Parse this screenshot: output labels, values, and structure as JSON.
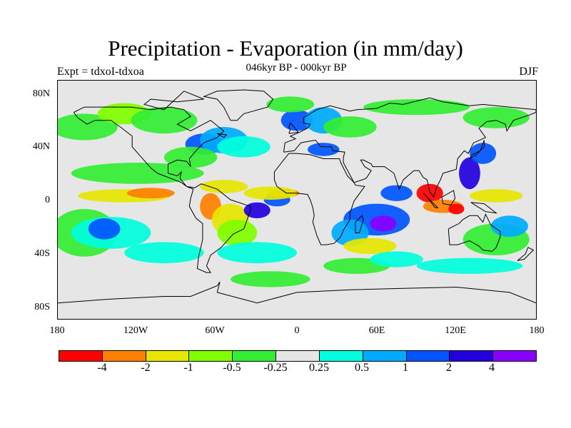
{
  "title": "Precipitation - Evaporation (in mm/day)",
  "subtitle": "046kyr BP - 000kyr BP",
  "left_label": "Expt = tdxoI-tdxoa",
  "right_label": "DJF",
  "lat_labels": [
    "80N",
    "40N",
    "0",
    "40S",
    "80S"
  ],
  "lon_labels": [
    "180",
    "120W",
    "60W",
    "0",
    "60E",
    "120E",
    "180"
  ],
  "colorbar": {
    "colors": [
      "#ff0000",
      "#ff8000",
      "#e6e600",
      "#80ff00",
      "#33ee33",
      "#e6e6e6",
      "#00ffdd",
      "#00aaff",
      "#0055ff",
      "#2200dd",
      "#8800ff"
    ],
    "labels": [
      "-4",
      "-2",
      "-1",
      "-0.5",
      "-0.25",
      "0.25",
      "0.5",
      "1",
      "2",
      "4"
    ]
  },
  "map": {
    "background": "#e6e6e6",
    "blobs": [
      {
        "c": "#33ee33",
        "lon": -120,
        "lat": 20,
        "rx": 50,
        "ry": 8
      },
      {
        "c": "#33ee33",
        "lon": -160,
        "lat": -25,
        "rx": 25,
        "ry": 18
      },
      {
        "c": "#00ffdd",
        "lon": -140,
        "lat": -25,
        "rx": 30,
        "ry": 12
      },
      {
        "c": "#0055ff",
        "lon": -145,
        "lat": -22,
        "rx": 12,
        "ry": 8
      },
      {
        "c": "#00ffdd",
        "lon": -100,
        "lat": -40,
        "rx": 30,
        "ry": 8
      },
      {
        "c": "#e6e600",
        "lon": -130,
        "lat": 3,
        "rx": 35,
        "ry": 5
      },
      {
        "c": "#ff8000",
        "lon": -110,
        "lat": 5,
        "rx": 18,
        "ry": 4
      },
      {
        "c": "#33ee33",
        "lon": -160,
        "lat": 55,
        "rx": 25,
        "ry": 10
      },
      {
        "c": "#80ff00",
        "lon": -130,
        "lat": 65,
        "rx": 20,
        "ry": 8
      },
      {
        "c": "#33ee33",
        "lon": -100,
        "lat": 60,
        "rx": 25,
        "ry": 10
      },
      {
        "c": "#0055ff",
        "lon": -70,
        "lat": 42,
        "rx": 14,
        "ry": 8
      },
      {
        "c": "#00aaff",
        "lon": -55,
        "lat": 45,
        "rx": 18,
        "ry": 10
      },
      {
        "c": "#00ffdd",
        "lon": -40,
        "lat": 40,
        "rx": 20,
        "ry": 8
      },
      {
        "c": "#33ee33",
        "lon": -80,
        "lat": 32,
        "rx": 20,
        "ry": 8
      },
      {
        "c": "#e6e600",
        "lon": -55,
        "lat": 10,
        "rx": 18,
        "ry": 5
      },
      {
        "c": "#ff8000",
        "lon": -65,
        "lat": -5,
        "rx": 8,
        "ry": 10
      },
      {
        "c": "#e6e600",
        "lon": -50,
        "lat": -15,
        "rx": 14,
        "ry": 12
      },
      {
        "c": "#80ff00",
        "lon": -45,
        "lat": -25,
        "rx": 15,
        "ry": 10
      },
      {
        "c": "#2200dd",
        "lon": -30,
        "lat": -8,
        "rx": 10,
        "ry": 6
      },
      {
        "c": "#0055ff",
        "lon": -15,
        "lat": 0,
        "rx": 10,
        "ry": 5
      },
      {
        "c": "#ff8000",
        "lon": -10,
        "lat": 5,
        "rx": 12,
        "ry": 3
      },
      {
        "c": "#e6e600",
        "lon": -20,
        "lat": 5,
        "rx": 20,
        "ry": 5
      },
      {
        "c": "#00ffdd",
        "lon": -30,
        "lat": -40,
        "rx": 30,
        "ry": 8
      },
      {
        "c": "#33ee33",
        "lon": -20,
        "lat": -60,
        "rx": 30,
        "ry": 6
      },
      {
        "c": "#0055ff",
        "lon": 0,
        "lat": 60,
        "rx": 12,
        "ry": 8
      },
      {
        "c": "#00aaff",
        "lon": 20,
        "lat": 60,
        "rx": 14,
        "ry": 10
      },
      {
        "c": "#33ee33",
        "lon": -5,
        "lat": 72,
        "rx": 18,
        "ry": 6
      },
      {
        "c": "#0055ff",
        "lon": 20,
        "lat": 38,
        "rx": 12,
        "ry": 5
      },
      {
        "c": "#33ee33",
        "lon": 40,
        "lat": 55,
        "rx": 20,
        "ry": 8
      },
      {
        "c": "#0055ff",
        "lon": 60,
        "lat": -15,
        "rx": 25,
        "ry": 12
      },
      {
        "c": "#8800ff",
        "lon": 65,
        "lat": -18,
        "rx": 10,
        "ry": 6
      },
      {
        "c": "#00aaff",
        "lon": 40,
        "lat": -25,
        "rx": 14,
        "ry": 10
      },
      {
        "c": "#e6e600",
        "lon": 55,
        "lat": -35,
        "rx": 20,
        "ry": 6
      },
      {
        "c": "#33ee33",
        "lon": 45,
        "lat": -50,
        "rx": 25,
        "ry": 6
      },
      {
        "c": "#00ffdd",
        "lon": 75,
        "lat": -45,
        "rx": 20,
        "ry": 6
      },
      {
        "c": "#ff0000",
        "lon": 100,
        "lat": 5,
        "rx": 10,
        "ry": 7
      },
      {
        "c": "#ff8000",
        "lon": 110,
        "lat": -5,
        "rx": 15,
        "ry": 5
      },
      {
        "c": "#ff0000",
        "lon": 120,
        "lat": -7,
        "rx": 6,
        "ry": 4
      },
      {
        "c": "#0055ff",
        "lon": 75,
        "lat": 5,
        "rx": 12,
        "ry": 6
      },
      {
        "c": "#e6e600",
        "lon": 150,
        "lat": 3,
        "rx": 20,
        "ry": 5
      },
      {
        "c": "#2200dd",
        "lon": 130,
        "lat": 20,
        "rx": 8,
        "ry": 12
      },
      {
        "c": "#0055ff",
        "lon": 140,
        "lat": 35,
        "rx": 10,
        "ry": 8
      },
      {
        "c": "#33ee33",
        "lon": 150,
        "lat": -30,
        "rx": 25,
        "ry": 12
      },
      {
        "c": "#00aaff",
        "lon": 160,
        "lat": -20,
        "rx": 14,
        "ry": 8
      },
      {
        "c": "#33ee33",
        "lon": 90,
        "lat": 70,
        "rx": 40,
        "ry": 6
      },
      {
        "c": "#33ee33",
        "lon": 150,
        "lat": 62,
        "rx": 25,
        "ry": 8
      },
      {
        "c": "#00ffdd",
        "lon": 130,
        "lat": -50,
        "rx": 40,
        "ry": 6
      }
    ],
    "coastlines": [
      [
        [
          -168,
          66
        ],
        [
          -160,
          70
        ],
        [
          -140,
          70
        ],
        [
          -125,
          70
        ],
        [
          -110,
          68
        ],
        [
          -95,
          70
        ],
        [
          -85,
          68
        ],
        [
          -80,
          63
        ],
        [
          -90,
          57
        ],
        [
          -80,
          52
        ],
        [
          -65,
          60
        ],
        [
          -55,
          52
        ],
        [
          -60,
          47
        ],
        [
          -70,
          43
        ],
        [
          -76,
          37
        ],
        [
          -81,
          31
        ],
        [
          -80,
          25
        ],
        [
          -83,
          29
        ],
        [
          -90,
          30
        ],
        [
          -97,
          27
        ],
        [
          -97,
          20
        ],
        [
          -90,
          18
        ],
        [
          -87,
          21
        ],
        [
          -88,
          16
        ],
        [
          -83,
          10
        ],
        [
          -78,
          8
        ],
        [
          -80,
          1
        ],
        [
          -81,
          -5
        ],
        [
          -76,
          -14
        ],
        [
          -71,
          -18
        ],
        [
          -71,
          -30
        ],
        [
          -74,
          -43
        ],
        [
          -75,
          -52
        ],
        [
          -68,
          -55
        ],
        [
          -65,
          -55
        ],
        [
          -68,
          -50
        ],
        [
          -65,
          -42
        ],
        [
          -57,
          -36
        ],
        [
          -48,
          -26
        ],
        [
          -40,
          -22
        ],
        [
          -35,
          -8
        ],
        [
          -35,
          -5
        ],
        [
          -50,
          0
        ],
        [
          -60,
          8
        ],
        [
          -72,
          12
        ],
        [
          -77,
          9
        ],
        [
          -83,
          10
        ],
        [
          -87,
          13
        ],
        [
          -92,
          15
        ],
        [
          -105,
          20
        ],
        [
          -110,
          24
        ],
        [
          -117,
          32
        ],
        [
          -124,
          40
        ],
        [
          -124,
          48
        ],
        [
          -133,
          55
        ],
        [
          -140,
          60
        ],
        [
          -152,
          60
        ],
        [
          -158,
          57
        ],
        [
          -165,
          62
        ],
        [
          -168,
          66
        ]
      ],
      [
        [
          -17,
          21
        ],
        [
          -17,
          15
        ],
        [
          -15,
          10
        ],
        [
          -8,
          5
        ],
        [
          0,
          5
        ],
        [
          8,
          4
        ],
        [
          10,
          0
        ],
        [
          12,
          -6
        ],
        [
          13,
          -12
        ],
        [
          12,
          -17
        ],
        [
          15,
          -27
        ],
        [
          18,
          -34
        ],
        [
          22,
          -34
        ],
        [
          28,
          -33
        ],
        [
          33,
          -28
        ],
        [
          35,
          -23
        ],
        [
          40,
          -15
        ],
        [
          40,
          -10
        ],
        [
          43,
          -1
        ],
        [
          51,
          10
        ],
        [
          44,
          11
        ],
        [
          43,
          13
        ],
        [
          38,
          18
        ],
        [
          33,
          28
        ],
        [
          32,
          31
        ],
        [
          20,
          31
        ],
        [
          10,
          34
        ],
        [
          0,
          35
        ],
        [
          -6,
          35
        ],
        [
          -10,
          30
        ],
        [
          -17,
          21
        ]
      ],
      [
        [
          -10,
          36
        ],
        [
          -9,
          43
        ],
        [
          -1,
          46
        ],
        [
          -5,
          48
        ],
        [
          2,
          51
        ],
        [
          8,
          54
        ],
        [
          10,
          57
        ],
        [
          5,
          58
        ],
        [
          5,
          62
        ],
        [
          15,
          68
        ],
        [
          25,
          71
        ],
        [
          40,
          67
        ],
        [
          45,
          68
        ],
        [
          60,
          69
        ],
        [
          70,
          73
        ],
        [
          80,
          72
        ],
        [
          100,
          77
        ],
        [
          110,
          74
        ],
        [
          130,
          71
        ],
        [
          140,
          72
        ],
        [
          160,
          70
        ],
        [
          180,
          68
        ],
        [
          180,
          66
        ],
        [
          175,
          64
        ],
        [
          163,
          60
        ],
        [
          158,
          52
        ],
        [
          157,
          57
        ],
        [
          150,
          60
        ],
        [
          143,
          59
        ],
        [
          137,
          54
        ],
        [
          142,
          47
        ],
        [
          133,
          43
        ],
        [
          129,
          35
        ],
        [
          126,
          37
        ],
        [
          121,
          31
        ],
        [
          120,
          23
        ],
        [
          110,
          20
        ],
        [
          108,
          15
        ],
        [
          105,
          9
        ],
        [
          103,
          2
        ],
        [
          100,
          6
        ],
        [
          98,
          15
        ],
        [
          95,
          17
        ],
        [
          92,
          22
        ],
        [
          88,
          22
        ],
        [
          80,
          15
        ],
        [
          77,
          8
        ],
        [
          73,
          20
        ],
        [
          66,
          25
        ],
        [
          57,
          25
        ],
        [
          56,
          27
        ],
        [
          50,
          30
        ],
        [
          48,
          30
        ],
        [
          51,
          25
        ],
        [
          56,
          22
        ],
        [
          52,
          16
        ],
        [
          43,
          13
        ],
        [
          35,
          28
        ],
        [
          35,
          32
        ],
        [
          36,
          36
        ],
        [
          27,
          37
        ],
        [
          26,
          40
        ],
        [
          18,
          40
        ],
        [
          14,
          45
        ],
        [
          8,
          44
        ],
        [
          3,
          43
        ],
        [
          -2,
          37
        ],
        [
          -10,
          36
        ]
      ],
      [
        [
          114,
          -22
        ],
        [
          115,
          -34
        ],
        [
          121,
          -34
        ],
        [
          130,
          -31
        ],
        [
          137,
          -35
        ],
        [
          140,
          -38
        ],
        [
          147,
          -39
        ],
        [
          150,
          -36
        ],
        [
          153,
          -28
        ],
        [
          153,
          -24
        ],
        [
          146,
          -19
        ],
        [
          142,
          -11
        ],
        [
          140,
          -17
        ],
        [
          136,
          -12
        ],
        [
          130,
          -12
        ],
        [
          125,
          -15
        ],
        [
          122,
          -18
        ],
        [
          114,
          -22
        ]
      ],
      [
        [
          -50,
          60
        ],
        [
          -45,
          60
        ],
        [
          -40,
          65
        ],
        [
          -22,
          70
        ],
        [
          -18,
          76
        ],
        [
          -25,
          82
        ],
        [
          -40,
          83
        ],
        [
          -60,
          82
        ],
        [
          -70,
          78
        ],
        [
          -60,
          76
        ],
        [
          -55,
          70
        ],
        [
          -50,
          60
        ]
      ],
      [
        [
          95,
          5
        ],
        [
          105,
          -5
        ],
        [
          106,
          -6
        ],
        [
          104,
          -6
        ],
        [
          98,
          2
        ],
        [
          95,
          5
        ]
      ],
      [
        [
          109,
          2
        ],
        [
          118,
          7
        ],
        [
          119,
          1
        ],
        [
          116,
          -4
        ],
        [
          110,
          -3
        ],
        [
          109,
          2
        ]
      ],
      [
        [
          131,
          -2
        ],
        [
          141,
          -3
        ],
        [
          150,
          -10
        ],
        [
          142,
          -9
        ],
        [
          134,
          -4
        ],
        [
          131,
          -2
        ]
      ],
      [
        [
          44,
          -25
        ],
        [
          47,
          -25
        ],
        [
          50,
          -15
        ],
        [
          49,
          -12
        ],
        [
          44,
          -17
        ],
        [
          44,
          -25
        ]
      ],
      [
        [
          130,
          31
        ],
        [
          135,
          34
        ],
        [
          141,
          40
        ],
        [
          141,
          45
        ],
        [
          138,
          37
        ],
        [
          132,
          34
        ],
        [
          130,
          31
        ]
      ],
      [
        [
          -6,
          50
        ],
        [
          1,
          51
        ],
        [
          -3,
          56
        ],
        [
          -5,
          58
        ],
        [
          -6,
          55
        ],
        [
          -5,
          53
        ],
        [
          -6,
          50
        ]
      ],
      [
        [
          166,
          -46
        ],
        [
          171,
          -45
        ],
        [
          178,
          -38
        ],
        [
          174,
          -36
        ],
        [
          172,
          -41
        ],
        [
          166,
          -46
        ]
      ],
      [
        [
          -180,
          -78
        ],
        [
          -140,
          -75
        ],
        [
          -100,
          -73
        ],
        [
          -80,
          -73
        ],
        [
          -60,
          -65
        ],
        [
          -58,
          -62
        ],
        [
          -60,
          -70
        ],
        [
          -30,
          -78
        ],
        [
          0,
          -70
        ],
        [
          40,
          -68
        ],
        [
          80,
          -67
        ],
        [
          120,
          -66
        ],
        [
          160,
          -70
        ],
        [
          180,
          -78
        ]
      ],
      [
        [
          -60,
          50
        ],
        [
          -55,
          47
        ],
        [
          -53,
          49
        ],
        [
          -60,
          50
        ]
      ],
      [
        [
          -85,
          82
        ],
        [
          -70,
          76
        ],
        [
          -90,
          74
        ],
        [
          -110,
          76
        ],
        [
          -115,
          72
        ],
        [
          -100,
          68
        ],
        [
          -85,
          82
        ]
      ]
    ]
  }
}
